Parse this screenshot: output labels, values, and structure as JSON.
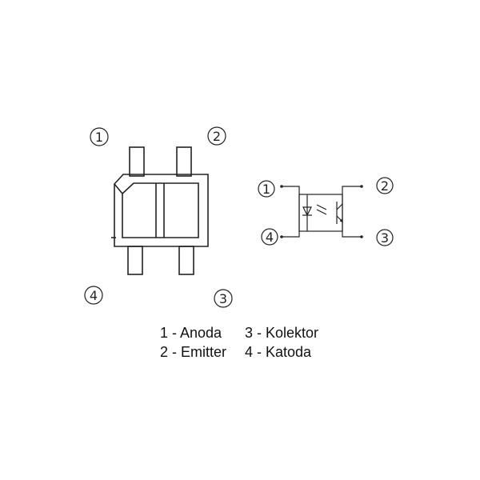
{
  "package_view": {
    "pins": [
      "1",
      "2",
      "3",
      "4"
    ]
  },
  "schematic_view": {
    "pins": [
      "1",
      "2",
      "3",
      "4"
    ]
  },
  "legend": {
    "row1_left": "1 - Anoda",
    "row1_right": "3 - Kolektor",
    "row2_left": "2 - Emitter",
    "row2_right": "4 - Katoda"
  }
}
